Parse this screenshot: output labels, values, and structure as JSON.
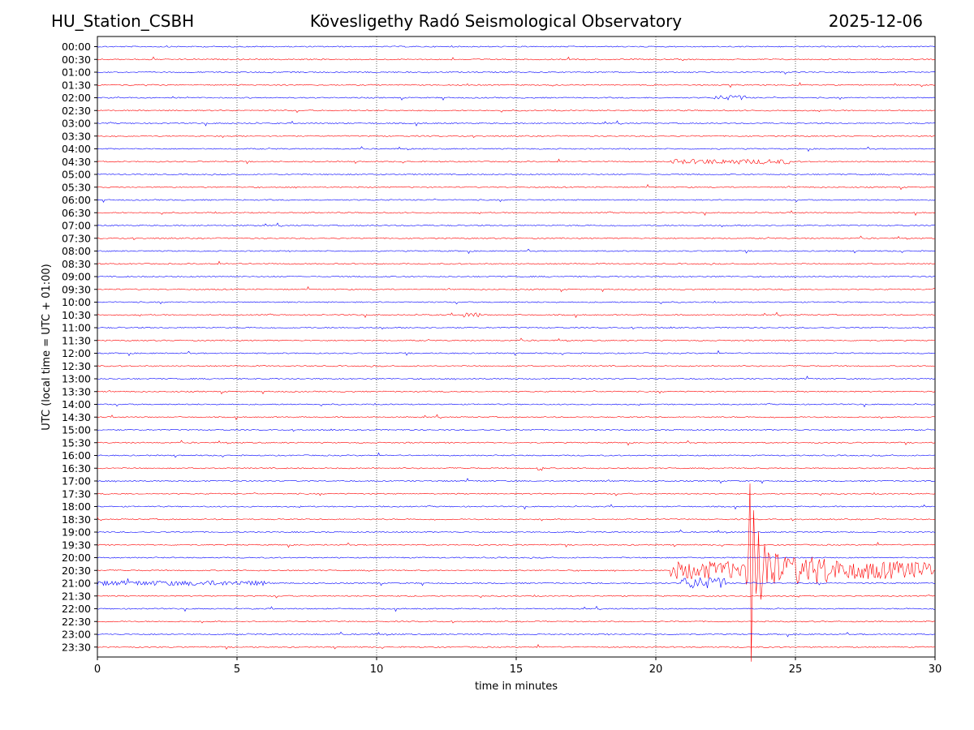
{
  "header": {
    "station": "HU_Station_CSBH",
    "observatory": "Kövesligethy Radó Seismological Observatory",
    "date": "2025-12-06"
  },
  "chart_data": {
    "type": "line",
    "title": "Kövesligethy Radó Seismological Observatory",
    "xlabel": "time in minutes",
    "ylabel": "UTC (local time = UTC + 01:00)",
    "xlim": [
      0,
      30
    ],
    "x_ticks": [
      0,
      5,
      10,
      15,
      20,
      25,
      30
    ],
    "x_gridlines": [
      5,
      10,
      15,
      20,
      25
    ],
    "grid": "vertical dotted",
    "trace_colors": [
      "#0000ff",
      "#ff0000"
    ],
    "rows": [
      "00:00",
      "00:30",
      "01:00",
      "01:30",
      "02:00",
      "02:30",
      "03:00",
      "03:30",
      "04:00",
      "04:30",
      "05:00",
      "05:30",
      "06:00",
      "06:30",
      "07:00",
      "07:30",
      "08:00",
      "08:30",
      "09:00",
      "09:30",
      "10:00",
      "10:30",
      "11:00",
      "11:30",
      "12:00",
      "12:30",
      "13:00",
      "13:30",
      "14:00",
      "14:30",
      "15:00",
      "15:30",
      "16:00",
      "16:30",
      "17:00",
      "17:30",
      "18:00",
      "18:30",
      "19:00",
      "19:30",
      "20:00",
      "20:30",
      "21:00",
      "21:30",
      "22:00",
      "22:30",
      "23:00",
      "23:30"
    ],
    "events": [
      {
        "row": "02:00",
        "start_min": 22.1,
        "end_min": 23.2,
        "amplitude": "small"
      },
      {
        "row": "04:30",
        "start_min": 20.5,
        "end_min": 24.8,
        "amplitude": "small"
      },
      {
        "row": "10:30",
        "start_min": 13.1,
        "end_min": 13.7,
        "amplitude": "small"
      },
      {
        "row": "16:30",
        "start_min": 15.7,
        "end_min": 16.0,
        "amplitude": "small"
      },
      {
        "row": "20:30",
        "start_min": 20.5,
        "end_min": 30.0,
        "amplitude": "large"
      },
      {
        "row": "21:00",
        "start_min": 0.0,
        "end_min": 6.0,
        "amplitude": "small"
      },
      {
        "row": "21:00",
        "start_min": 20.9,
        "end_min": 22.5,
        "amplitude": "medium"
      },
      {
        "row": "20:30",
        "start_min": 23.3,
        "end_min": 24.8,
        "amplitude": "very-large"
      }
    ]
  }
}
